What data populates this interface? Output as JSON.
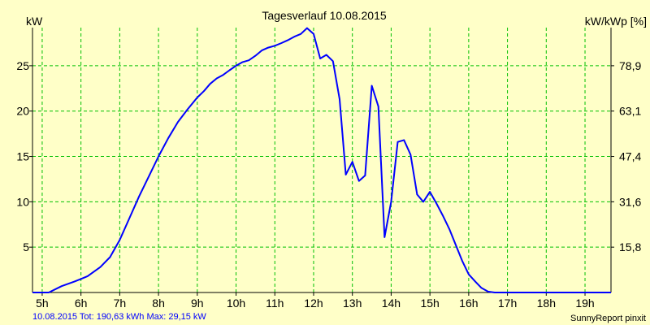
{
  "chart_data": {
    "type": "line",
    "title": "Tagesverlauf 10.08.2015",
    "ylabel_left": "kW",
    "ylabel_right": "kW/kWp [%]",
    "xlim": [
      4.75,
      19.67
    ],
    "ylim": [
      0,
      29.2
    ],
    "x_ticks": [
      {
        "value": 5,
        "label": "5h"
      },
      {
        "value": 6,
        "label": "6h"
      },
      {
        "value": 7,
        "label": "7h"
      },
      {
        "value": 8,
        "label": "8h"
      },
      {
        "value": 9,
        "label": "9h"
      },
      {
        "value": 10,
        "label": "10h"
      },
      {
        "value": 11,
        "label": "11h"
      },
      {
        "value": 12,
        "label": "12h"
      },
      {
        "value": 13,
        "label": "13h"
      },
      {
        "value": 14,
        "label": "14h"
      },
      {
        "value": 15,
        "label": "15h"
      },
      {
        "value": 16,
        "label": "16h"
      },
      {
        "value": 17,
        "label": "17h"
      },
      {
        "value": 18,
        "label": "18h"
      },
      {
        "value": 19,
        "label": "19h"
      }
    ],
    "y_ticks_left": [
      {
        "value": 5,
        "label": "5"
      },
      {
        "value": 10,
        "label": "10"
      },
      {
        "value": 15,
        "label": "15"
      },
      {
        "value": 20,
        "label": "20"
      },
      {
        "value": 25,
        "label": "25"
      }
    ],
    "y_ticks_right": [
      {
        "value": 5,
        "label": "15,8"
      },
      {
        "value": 10,
        "label": "31,6"
      },
      {
        "value": 15,
        "label": "47,4"
      },
      {
        "value": 20,
        "label": "63,1"
      },
      {
        "value": 25,
        "label": "78,9"
      }
    ],
    "grid": true,
    "colors": {
      "background": "#FFFFC8",
      "grid": "#00C000",
      "line": "#0000FF",
      "footer_text": "#0000FF"
    },
    "series": [
      {
        "x": [
          4.75,
          5.17,
          5.5,
          5.83,
          6.0,
          6.17,
          6.5,
          6.75,
          7.0,
          7.25,
          7.5,
          7.75,
          8.0,
          8.25,
          8.5,
          8.75,
          9.0,
          9.17,
          9.33,
          9.5,
          9.67,
          9.83,
          10.0,
          10.17,
          10.33,
          10.5,
          10.67,
          10.83,
          11.0,
          11.17,
          11.33,
          11.5,
          11.67,
          11.83,
          12.0,
          12.17,
          12.33,
          12.5,
          12.67,
          12.83,
          13.0,
          13.17,
          13.33,
          13.5,
          13.67,
          13.83,
          14.0,
          14.17,
          14.33,
          14.5,
          14.67,
          14.83,
          15.0,
          15.17,
          15.33,
          15.5,
          15.67,
          15.83,
          16.0,
          16.17,
          16.33,
          16.5,
          16.67,
          16.83,
          17.0,
          17.25,
          17.5,
          17.75,
          18.0,
          18.25,
          18.5,
          18.75,
          19.0,
          19.25,
          19.5,
          19.67
        ],
        "values": [
          0,
          0,
          0.7,
          1.2,
          1.5,
          1.8,
          2.8,
          3.9,
          5.8,
          8.2,
          10.6,
          12.8,
          15.0,
          17.0,
          18.8,
          20.2,
          21.5,
          22.2,
          23.0,
          23.6,
          24.0,
          24.5,
          25.0,
          25.4,
          25.6,
          26.1,
          26.7,
          27.0,
          27.2,
          27.5,
          27.8,
          28.2,
          28.5,
          29.15,
          28.5,
          25.8,
          26.2,
          25.5,
          21.3,
          13.0,
          14.4,
          12.3,
          12.9,
          22.8,
          20.5,
          6.1,
          10.0,
          16.6,
          16.8,
          15.2,
          10.8,
          10.0,
          11.1,
          9.8,
          8.5,
          7.0,
          5.2,
          3.5,
          2.0,
          1.2,
          0.5,
          0.1,
          0,
          0,
          0,
          0,
          0,
          0,
          0,
          0,
          0,
          0,
          0,
          0,
          0,
          0
        ]
      }
    ]
  },
  "footer": {
    "summary": "10.08.2015 Tot: 190,63 kWh Max: 29,15 kW",
    "brand": "SunnyReport pinxit"
  }
}
